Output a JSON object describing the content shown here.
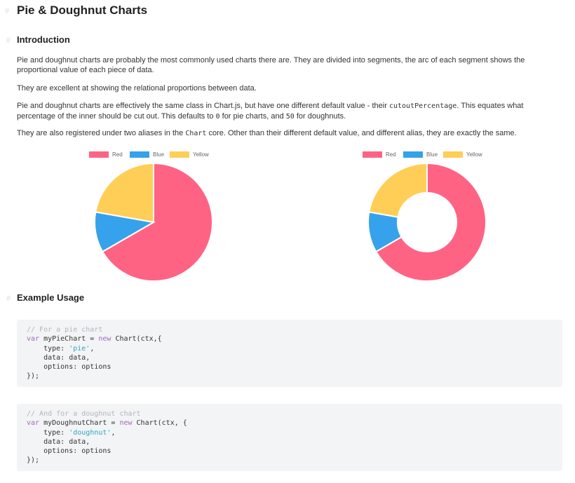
{
  "page": {
    "title": "Pie & Doughnut Charts",
    "anchor_glyph": "#"
  },
  "intro": {
    "heading": "Introduction",
    "p1": "Pie and doughnut charts are probably the most commonly used charts there are. They are divided into segments, the arc of each segment shows the proportional value of each piece of data.",
    "p2": "They are excellent at showing the relational proportions between data.",
    "p3_a": "Pie and doughnut charts are effectively the same class in Chart.js, but have one different default value - their ",
    "p3_code1": "cutoutPercentage",
    "p3_b": ". This equates what percentage of the inner should be cut out. This defaults to ",
    "p3_code2": "0",
    "p3_c": " for pie charts, and ",
    "p3_code3": "50",
    "p3_d": " for doughnuts.",
    "p4_a": "They are also registered under two aliases in the ",
    "p4_code": "Chart",
    "p4_b": " core. Other than their different default value, and different alias, they are exactly the same."
  },
  "colors": {
    "red": "#ff6384",
    "blue": "#36a2eb",
    "yellow": "#ffce56"
  },
  "chart_data": [
    {
      "type": "pie",
      "categories": [
        "Red",
        "Blue",
        "Yellow"
      ],
      "values": [
        300,
        50,
        100
      ],
      "colors": [
        "#ff6384",
        "#36a2eb",
        "#ffce56"
      ],
      "legend": "top"
    },
    {
      "type": "doughnut",
      "categories": [
        "Red",
        "Blue",
        "Yellow"
      ],
      "values": [
        300,
        50,
        100
      ],
      "colors": [
        "#ff6384",
        "#36a2eb",
        "#ffce56"
      ],
      "legend": "top",
      "cutout_percentage": 50
    }
  ],
  "usage": {
    "heading": "Example Usage",
    "code1": {
      "comment": "// For a pie chart",
      "l2_kw": "var",
      "l2_a": " myPieChart = ",
      "l2_kw2": "new",
      "l2_b": " Chart(ctx,{",
      "l3_a": "    type: ",
      "l3_str": "'pie'",
      "l3_b": ",",
      "l4": "    data: data,",
      "l5": "    options: options",
      "l6": "});"
    },
    "code2": {
      "comment": "// And for a doughnut chart",
      "l2_kw": "var",
      "l2_a": " myDoughnutChart = ",
      "l2_kw2": "new",
      "l2_b": " Chart(ctx, {",
      "l3_a": "    type: ",
      "l3_str": "'doughnut'",
      "l3_b": ",",
      "l4": "    data: data,",
      "l5": "    options: options",
      "l6": "});"
    }
  }
}
